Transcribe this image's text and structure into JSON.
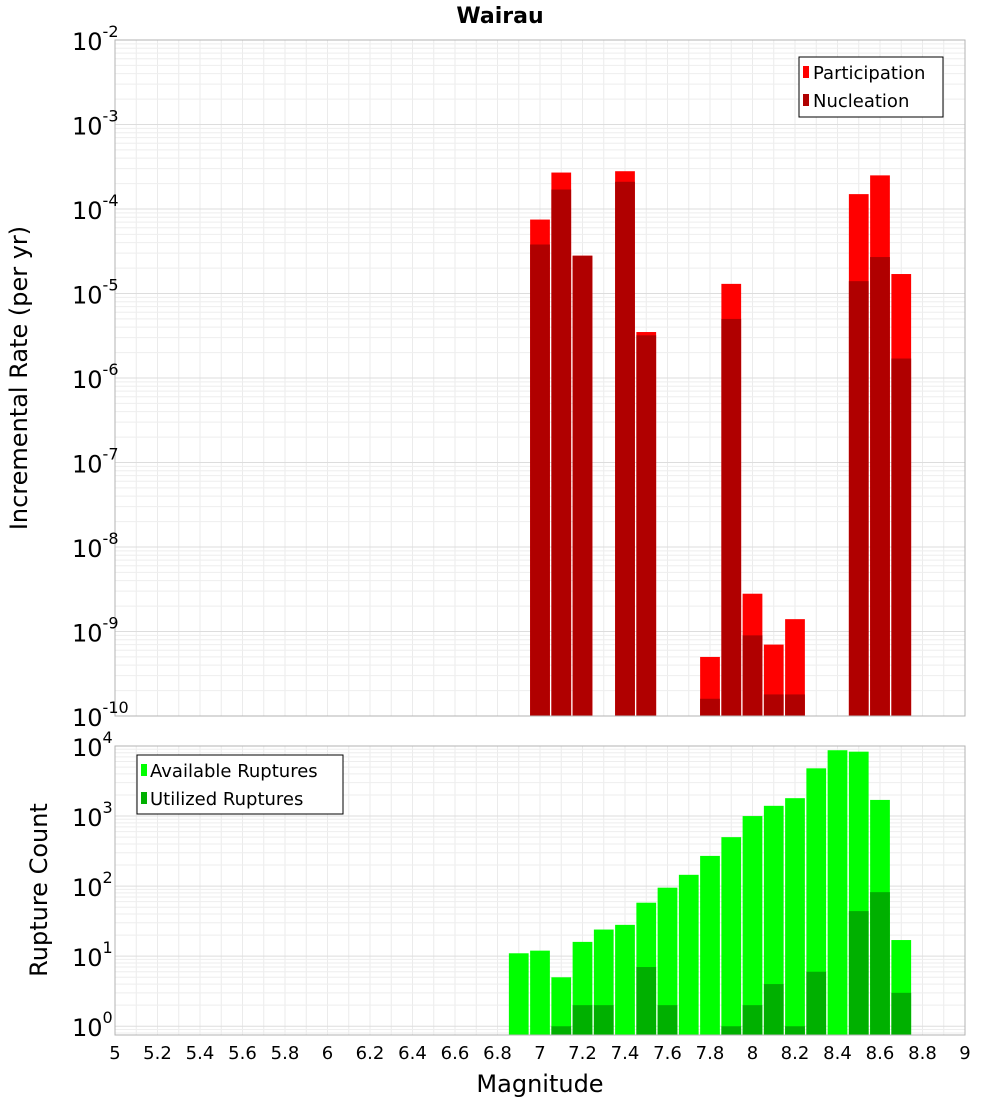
{
  "chart_data": [
    {
      "type": "bar",
      "title": "Wairau",
      "xlabel": "Magnitude",
      "ylabel": "Incremental Rate (per yr)",
      "yscale": "log",
      "ylim": [
        1e-10,
        0.01
      ],
      "xlim": [
        5,
        9
      ],
      "grid": true,
      "legend_position": "top-right",
      "legend": [
        "Participation",
        "Nucleation"
      ],
      "colors": {
        "Participation": "#ff0000",
        "Nucleation": "#b00000"
      },
      "x": [
        7.0,
        7.1,
        7.2,
        7.4,
        7.5,
        7.8,
        7.9,
        8.0,
        8.1,
        8.2,
        8.5,
        8.6,
        8.7
      ],
      "series": [
        {
          "name": "Participation",
          "values": [
            7.5e-05,
            0.00027,
            2.8e-05,
            0.00028,
            3.5e-06,
            5e-10,
            1.3e-05,
            2.8e-09,
            7e-10,
            1.4e-09,
            0.00015,
            0.00025,
            1.7e-05
          ]
        },
        {
          "name": "Nucleation",
          "values": [
            3.8e-05,
            0.00017,
            2.8e-05,
            0.00021,
            3.2e-06,
            1.6e-10,
            5e-06,
            9e-10,
            1.8e-10,
            1.8e-10,
            1.4e-05,
            2.7e-05,
            1.7e-06
          ]
        }
      ]
    },
    {
      "type": "bar",
      "title": "",
      "xlabel": "Magnitude",
      "ylabel": "Rupture Count",
      "yscale": "log",
      "ylim": [
        0.75,
        10000
      ],
      "xlim": [
        5,
        9
      ],
      "grid": true,
      "legend_position": "top-left",
      "legend": [
        "Available Ruptures",
        "Utilized Ruptures"
      ],
      "colors": {
        "Available Ruptures": "#00ff00",
        "Utilized Ruptures": "#00b000"
      },
      "x": [
        6.9,
        7.0,
        7.1,
        7.2,
        7.3,
        7.4,
        7.5,
        7.6,
        7.7,
        7.8,
        7.9,
        8.0,
        8.1,
        8.2,
        8.3,
        8.4,
        8.5,
        8.6,
        8.7
      ],
      "series": [
        {
          "name": "Available Ruptures",
          "values": [
            11,
            12,
            5,
            16,
            24,
            28,
            58,
            95,
            145,
            270,
            500,
            1000,
            1400,
            1800,
            4800,
            8700,
            8300,
            1700,
            17
          ]
        },
        {
          "name": "Utilized Ruptures",
          "values": [
            0,
            0,
            1,
            2,
            2,
            0,
            7,
            2,
            0,
            0,
            1,
            2,
            4,
            1,
            6,
            0,
            44,
            82,
            3
          ]
        }
      ]
    }
  ],
  "x_ticks": [
    "5",
    "5.2",
    "5.4",
    "5.6",
    "5.8",
    "6",
    "6.2",
    "6.4",
    "6.6",
    "6.8",
    "7",
    "7.2",
    "7.4",
    "7.6",
    "7.8",
    "8",
    "8.2",
    "8.4",
    "8.6",
    "8.8",
    "9"
  ],
  "top_y_ticks": [
    {
      "base": "10",
      "exp": "-2"
    },
    {
      "base": "10",
      "exp": "-3"
    },
    {
      "base": "10",
      "exp": "-4"
    },
    {
      "base": "10",
      "exp": "-5"
    },
    {
      "base": "10",
      "exp": "-6"
    },
    {
      "base": "10",
      "exp": "-7"
    },
    {
      "base": "10",
      "exp": "-8"
    },
    {
      "base": "10",
      "exp": "-9"
    },
    {
      "base": "10",
      "exp": "-10"
    }
  ],
  "bottom_y_ticks": [
    {
      "base": "10",
      "exp": "4"
    },
    {
      "base": "10",
      "exp": "3"
    },
    {
      "base": "10",
      "exp": "2"
    },
    {
      "base": "10",
      "exp": "1"
    },
    {
      "base": "10",
      "exp": "0"
    }
  ]
}
